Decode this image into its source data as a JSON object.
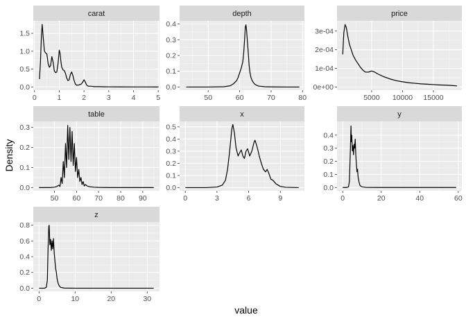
{
  "xlabel": "value",
  "ylabel": "Density",
  "chart_data": [
    {
      "type": "line",
      "title": "carat",
      "xlim": [
        -0.05,
        5.05
      ],
      "ylim": [
        -0.09,
        1.85
      ],
      "xticks": [
        {
          "v": 0,
          "label": "0"
        },
        {
          "v": 1,
          "label": "1"
        },
        {
          "v": 2,
          "label": "2"
        },
        {
          "v": 3,
          "label": "3"
        },
        {
          "v": 4,
          "label": "4"
        },
        {
          "v": 5,
          "label": "5"
        }
      ],
      "yticks": [
        {
          "v": 0,
          "label": "0.0"
        },
        {
          "v": 0.5,
          "label": "0.5"
        },
        {
          "v": 1,
          "label": "1.0"
        },
        {
          "v": 1.5,
          "label": "1.5"
        }
      ],
      "x": [
        0.2,
        0.24,
        0.28,
        0.31,
        0.35,
        0.4,
        0.45,
        0.5,
        0.55,
        0.6,
        0.65,
        0.7,
        0.75,
        0.8,
        0.85,
        0.9,
        0.95,
        1.0,
        1.03,
        1.06,
        1.1,
        1.15,
        1.2,
        1.25,
        1.3,
        1.35,
        1.4,
        1.45,
        1.5,
        1.55,
        1.6,
        1.65,
        1.7,
        1.75,
        1.8,
        1.85,
        1.9,
        1.95,
        2.0,
        2.05,
        2.1,
        2.15,
        2.2,
        2.3,
        2.4,
        2.5,
        2.6,
        2.8,
        3.0,
        3.5,
        4.0,
        4.5,
        5.01
      ],
      "y": [
        0.22,
        0.7,
        1.45,
        1.75,
        1.4,
        1.0,
        0.95,
        0.92,
        0.65,
        0.55,
        0.6,
        0.85,
        0.7,
        0.45,
        0.4,
        0.42,
        0.65,
        1.03,
        0.95,
        0.75,
        0.55,
        0.48,
        0.46,
        0.38,
        0.25,
        0.18,
        0.2,
        0.35,
        0.42,
        0.32,
        0.18,
        0.08,
        0.05,
        0.05,
        0.06,
        0.07,
        0.09,
        0.14,
        0.2,
        0.14,
        0.06,
        0.03,
        0.02,
        0.02,
        0.01,
        0.01,
        0.01,
        0.005,
        0.003,
        0.002,
        0.001,
        0.001,
        0.0
      ]
    },
    {
      "type": "line",
      "title": "depth",
      "xlim": [
        40.9,
        80.6
      ],
      "ylim": [
        -0.02,
        0.42
      ],
      "xticks": [
        {
          "v": 50,
          "label": "50"
        },
        {
          "v": 60,
          "label": "60"
        },
        {
          "v": 70,
          "label": "70"
        },
        {
          "v": 80,
          "label": "80"
        }
      ],
      "yticks": [
        {
          "v": 0,
          "label": "0.0"
        },
        {
          "v": 0.1,
          "label": "0.1"
        },
        {
          "v": 0.2,
          "label": "0.2"
        },
        {
          "v": 0.3,
          "label": "0.3"
        },
        {
          "v": 0.4,
          "label": "0.4"
        }
      ],
      "x": [
        43,
        50,
        55,
        57,
        58,
        59,
        59.5,
        60,
        60.5,
        61,
        61.3,
        61.6,
        61.8,
        62.0,
        62.2,
        62.5,
        62.8,
        63.0,
        63.3,
        63.6,
        64,
        64.5,
        65,
        66,
        68,
        70,
        75,
        79
      ],
      "y": [
        0.0,
        0.0,
        0.002,
        0.008,
        0.02,
        0.04,
        0.06,
        0.09,
        0.12,
        0.16,
        0.22,
        0.31,
        0.38,
        0.395,
        0.36,
        0.28,
        0.2,
        0.14,
        0.09,
        0.06,
        0.04,
        0.025,
        0.015,
        0.006,
        0.002,
        0.001,
        0.0,
        0.0
      ]
    },
    {
      "type": "line",
      "title": "price",
      "xlim": [
        -600,
        19600
      ],
      "ylim": [
        -1.7e-05,
        0.000355
      ],
      "xticks": [
        {
          "v": 5000,
          "label": "5000"
        },
        {
          "v": 10000,
          "label": "10000"
        },
        {
          "v": 15000,
          "label": "15000"
        }
      ],
      "yticks": [
        {
          "v": 0,
          "label": "0e+00"
        },
        {
          "v": 0.0001,
          "label": "1e-04"
        },
        {
          "v": 0.0002,
          "label": "2e-04"
        },
        {
          "v": 0.0003,
          "label": "3e-04"
        }
      ],
      "x": [
        326,
        500,
        700,
        900,
        1100,
        1400,
        1700,
        2000,
        2400,
        2800,
        3200,
        3600,
        4000,
        4500,
        5000,
        5500,
        6000,
        7000,
        8000,
        9000,
        10000,
        11000,
        12000,
        13000,
        14000,
        15000,
        16000,
        17000,
        18000,
        18823
      ],
      "y": [
        0.000175,
        0.00029,
        0.000335,
        0.00032,
        0.00028,
        0.00023,
        0.0002,
        0.00017,
        0.000145,
        0.000125,
        0.000105,
        9e-05,
        8e-05,
        8e-05,
        8.6e-05,
        8e-05,
        7e-05,
        5.5e-05,
        4.3e-05,
        3.4e-05,
        2.8e-05,
        2.3e-05,
        2e-05,
        1.7e-05,
        1.5e-05,
        1.3e-05,
        1.1e-05,
        1e-05,
        8e-06,
        6e-06
      ]
    },
    {
      "type": "line",
      "title": "table",
      "xlim": [
        40.4,
        97.6
      ],
      "ylim": [
        -0.016,
        0.33
      ],
      "xticks": [
        {
          "v": 50,
          "label": "50"
        },
        {
          "v": 60,
          "label": "60"
        },
        {
          "v": 70,
          "label": "70"
        },
        {
          "v": 80,
          "label": "80"
        },
        {
          "v": 90,
          "label": "90"
        }
      ],
      "yticks": [
        {
          "v": 0,
          "label": "0.0"
        },
        {
          "v": 0.1,
          "label": "0.1"
        },
        {
          "v": 0.2,
          "label": "0.2"
        },
        {
          "v": 0.3,
          "label": "0.3"
        }
      ],
      "x": [
        43,
        48,
        50,
        51,
        52,
        52.5,
        53,
        53.5,
        54,
        54.5,
        55,
        55.5,
        56,
        56.5,
        57,
        57.5,
        58,
        58.5,
        59,
        59.5,
        60,
        60.5,
        61,
        61.5,
        62,
        62.5,
        63,
        63.5,
        64,
        65,
        66,
        68,
        70,
        75,
        80,
        95
      ],
      "y": [
        0.0,
        0.0,
        0.002,
        0.005,
        0.012,
        0.005,
        0.05,
        0.02,
        0.13,
        0.05,
        0.22,
        0.1,
        0.31,
        0.14,
        0.3,
        0.13,
        0.28,
        0.11,
        0.22,
        0.08,
        0.15,
        0.05,
        0.09,
        0.03,
        0.05,
        0.015,
        0.03,
        0.008,
        0.015,
        0.007,
        0.004,
        0.002,
        0.001,
        0.0,
        0.0,
        0.0
      ]
    },
    {
      "type": "line",
      "title": "x",
      "xlim": [
        -0.54,
        11.28
      ],
      "ylim": [
        -0.026,
        0.545
      ],
      "xticks": [
        {
          "v": 0,
          "label": "0"
        },
        {
          "v": 3,
          "label": "3"
        },
        {
          "v": 6,
          "label": "6"
        },
        {
          "v": 9,
          "label": "9"
        }
      ],
      "yticks": [
        {
          "v": 0,
          "label": "0.0"
        },
        {
          "v": 0.1,
          "label": "0.1"
        },
        {
          "v": 0.2,
          "label": "0.2"
        },
        {
          "v": 0.3,
          "label": "0.3"
        },
        {
          "v": 0.4,
          "label": "0.4"
        },
        {
          "v": 0.5,
          "label": "0.5"
        }
      ],
      "x": [
        0,
        2,
        3,
        3.5,
        3.8,
        4.0,
        4.2,
        4.4,
        4.5,
        4.65,
        4.8,
        5.0,
        5.1,
        5.3,
        5.45,
        5.6,
        5.75,
        5.9,
        6.1,
        6.3,
        6.5,
        6.6,
        6.75,
        6.9,
        7.0,
        7.2,
        7.4,
        7.6,
        7.75,
        7.9,
        8.1,
        8.3,
        8.6,
        9.0,
        9.5,
        10.74
      ],
      "y": [
        0.0,
        0.0,
        0.005,
        0.02,
        0.06,
        0.15,
        0.3,
        0.48,
        0.52,
        0.45,
        0.33,
        0.26,
        0.28,
        0.31,
        0.26,
        0.24,
        0.3,
        0.32,
        0.26,
        0.3,
        0.37,
        0.39,
        0.35,
        0.3,
        0.26,
        0.2,
        0.15,
        0.13,
        0.15,
        0.12,
        0.07,
        0.06,
        0.03,
        0.01,
        0.003,
        0.0
      ]
    },
    {
      "type": "line",
      "title": "y",
      "xlim": [
        -2.95,
        61.85
      ],
      "ylim": [
        -0.025,
        0.505
      ],
      "xticks": [
        {
          "v": 0,
          "label": "0"
        },
        {
          "v": 20,
          "label": "20"
        },
        {
          "v": 40,
          "label": "40"
        },
        {
          "v": 60,
          "label": "60"
        }
      ],
      "yticks": [
        {
          "v": 0,
          "label": "0.0"
        },
        {
          "v": 0.1,
          "label": "0.1"
        },
        {
          "v": 0.2,
          "label": "0.2"
        },
        {
          "v": 0.3,
          "label": "0.3"
        },
        {
          "v": 0.4,
          "label": "0.4"
        }
      ],
      "x": [
        0,
        2,
        3,
        3.5,
        4.0,
        4.3,
        4.5,
        4.7,
        5.0,
        5.3,
        5.6,
        5.9,
        6.2,
        6.5,
        6.8,
        7.1,
        7.4,
        7.7,
        8.0,
        8.5,
        9,
        10,
        12,
        20,
        30,
        40,
        50,
        58.9
      ],
      "y": [
        0.0,
        0.0,
        0.005,
        0.05,
        0.3,
        0.47,
        0.35,
        0.4,
        0.28,
        0.32,
        0.25,
        0.33,
        0.3,
        0.37,
        0.25,
        0.18,
        0.12,
        0.14,
        0.08,
        0.04,
        0.015,
        0.005,
        0.001,
        0.0,
        0.0,
        0.0,
        0.0,
        0.0
      ]
    },
    {
      "type": "line",
      "title": "z",
      "xlim": [
        -1.6,
        33.4
      ],
      "ylim": [
        -0.04,
        0.84
      ],
      "xticks": [
        {
          "v": 0,
          "label": "0"
        },
        {
          "v": 10,
          "label": "10"
        },
        {
          "v": 20,
          "label": "20"
        },
        {
          "v": 30,
          "label": "30"
        }
      ],
      "yticks": [
        {
          "v": 0,
          "label": "0.0"
        },
        {
          "v": 0.2,
          "label": "0.2"
        },
        {
          "v": 0.4,
          "label": "0.4"
        },
        {
          "v": 0.6,
          "label": "0.6"
        },
        {
          "v": 0.8,
          "label": "0.8"
        }
      ],
      "x": [
        0,
        1.5,
        2.0,
        2.3,
        2.5,
        2.7,
        2.8,
        3.0,
        3.2,
        3.4,
        3.6,
        3.8,
        4.0,
        4.2,
        4.4,
        4.6,
        4.8,
        5.0,
        5.3,
        5.6,
        6.0,
        7,
        10,
        15,
        20,
        25,
        31.8
      ],
      "y": [
        0.0,
        0.0,
        0.01,
        0.1,
        0.5,
        0.78,
        0.8,
        0.55,
        0.62,
        0.48,
        0.6,
        0.5,
        0.63,
        0.45,
        0.35,
        0.25,
        0.2,
        0.12,
        0.06,
        0.03,
        0.01,
        0.002,
        0.0,
        0.0,
        0.0,
        0.0,
        0.0
      ]
    }
  ]
}
